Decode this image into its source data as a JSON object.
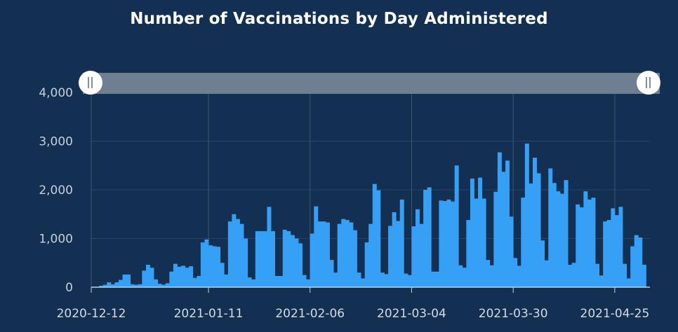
{
  "title": "Number of Vaccinations by Day Administered",
  "colors": {
    "background": "#132f51",
    "bar": "#35a0f6",
    "gridline": "#25446a",
    "slider_track": "#6f7f92",
    "slider_handle": "#ffffff"
  },
  "range_slider": {
    "start_handle_icon": "grip-lines-icon",
    "end_handle_icon": "grip-lines-icon",
    "selected_fraction": [
      0,
      1
    ]
  },
  "chart_data": {
    "type": "bar",
    "title": "Number of Vaccinations by Day Administered",
    "xlabel": "",
    "ylabel": "",
    "ylim": [
      0,
      4000
    ],
    "xlim": [
      "2020-12-12",
      "2021-05-04"
    ],
    "yticks": [
      0,
      1000,
      2000,
      3000,
      4000
    ],
    "ytick_labels": [
      "0",
      "1,000",
      "2,000",
      "3,000",
      "4,000"
    ],
    "xticks": [
      "2020-12-12",
      "2021-01-11",
      "2021-02-06",
      "2021-03-04",
      "2021-03-30",
      "2021-04-25"
    ],
    "grid": true,
    "start_date": "2020-12-14",
    "values": [
      30,
      50,
      100,
      60,
      100,
      150,
      260,
      260,
      60,
      50,
      60,
      340,
      460,
      400,
      160,
      70,
      50,
      80,
      320,
      480,
      420,
      440,
      400,
      430,
      190,
      230,
      920,
      980,
      860,
      840,
      830,
      500,
      260,
      1350,
      1500,
      1400,
      1300,
      1000,
      200,
      160,
      1150,
      1150,
      1150,
      1650,
      1150,
      230,
      230,
      1180,
      1150,
      1070,
      1000,
      900,
      250,
      160,
      1100,
      1660,
      1350,
      1350,
      1330,
      560,
      300,
      1300,
      1400,
      1380,
      1330,
      1170,
      300,
      180,
      920,
      1300,
      2120,
      1990,
      300,
      270,
      1260,
      1540,
      1360,
      1800,
      280,
      250,
      1250,
      1600,
      1300,
      2000,
      2050,
      320,
      320,
      1780,
      1770,
      1800,
      1760,
      2500,
      450,
      400,
      1380,
      2230,
      1820,
      2250,
      1820,
      560,
      450,
      1960,
      2770,
      2370,
      2600,
      1450,
      600,
      440,
      1840,
      2950,
      2130,
      2660,
      2340,
      960,
      550,
      2440,
      2140,
      1970,
      1920,
      2200,
      460,
      500,
      1700,
      1640,
      1970,
      1800,
      1840,
      480,
      240,
      1350,
      1380,
      1620,
      1480,
      1650,
      480,
      180,
      840,
      1070,
      1020,
      460
    ]
  }
}
